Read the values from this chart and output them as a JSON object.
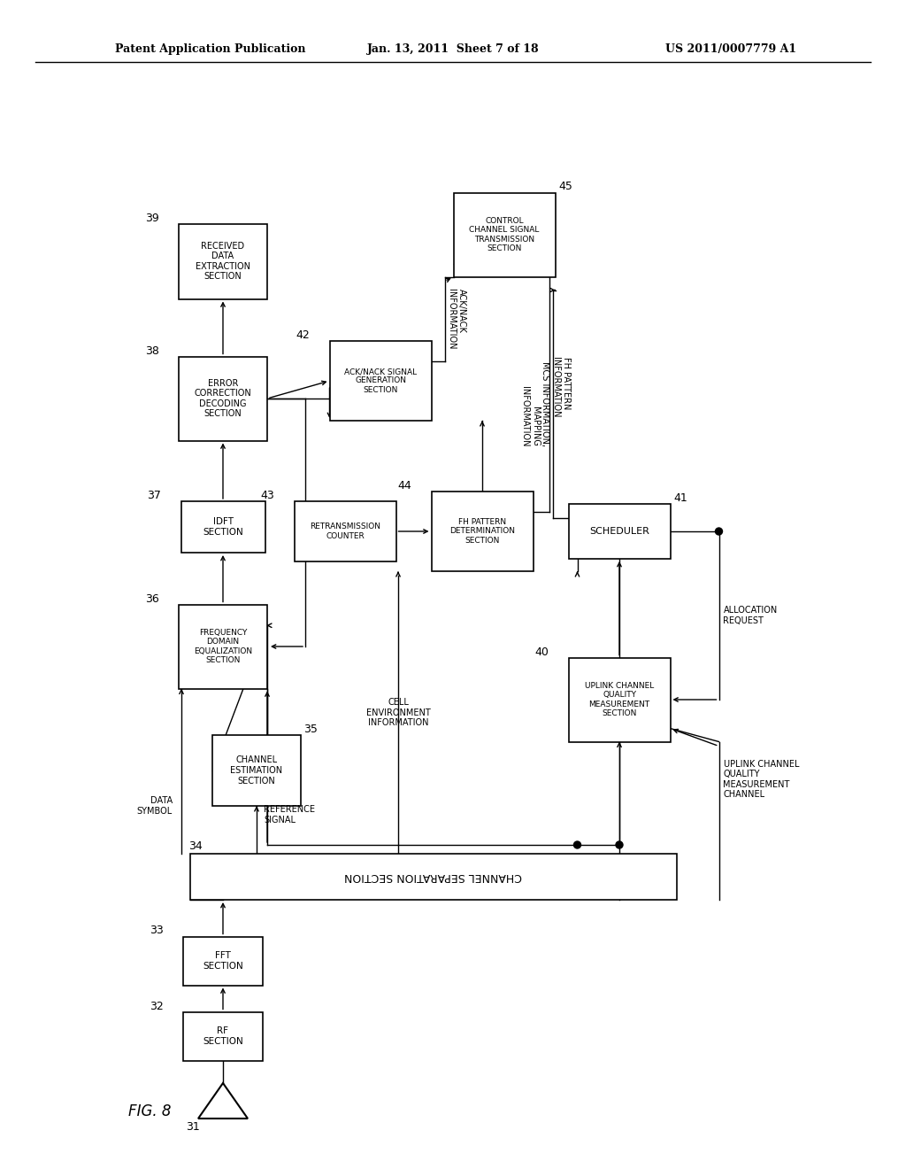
{
  "title_left": "Patent Application Publication",
  "title_center": "Jan. 13, 2011  Sheet 7 of 18",
  "title_right": "US 2011/0007779 A1",
  "fig_label": "FIG. 8",
  "background": "#ffffff"
}
